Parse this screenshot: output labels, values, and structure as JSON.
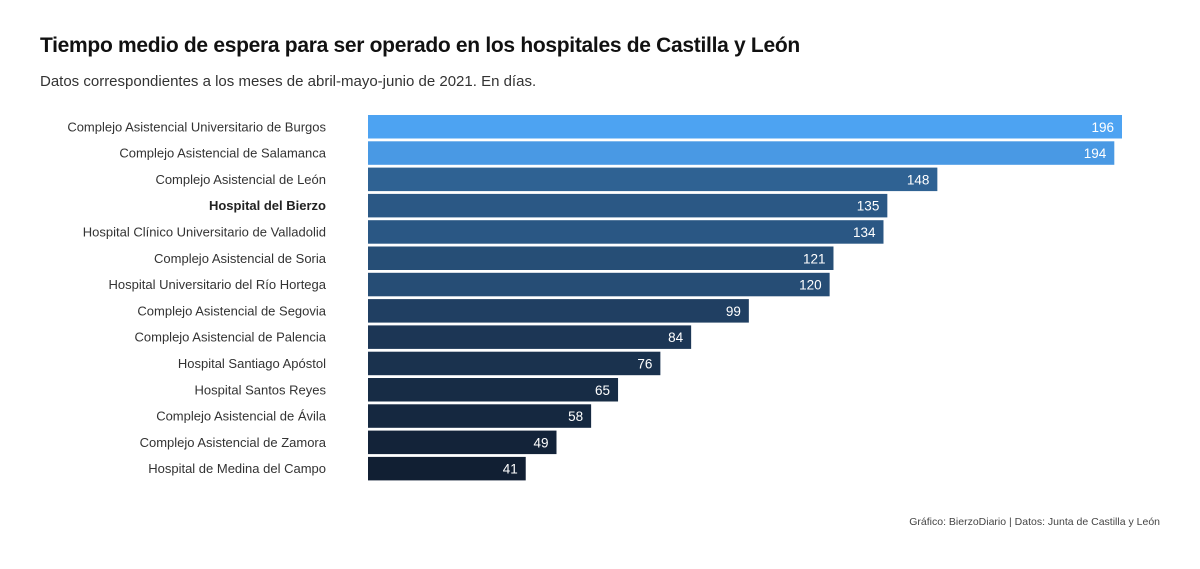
{
  "chart_data": {
    "type": "bar",
    "orientation": "horizontal",
    "title": "Tiempo medio de espera para ser operado en los hospitales de Castilla y León",
    "subtitle": "Datos correspondientes a los meses de abril-mayo-junio de 2021. En días.",
    "categories": [
      "Complejo Asistencial Universitario de Burgos",
      "Complejo Asistencial de Salamanca",
      "Complejo Asistencial de León",
      "Hospital del Bierzo",
      "Hospital Clínico Universitario de Valladolid",
      "Complejo Asistencial de Soria",
      "Hospital Universitario del Río Hortega",
      "Complejo Asistencial de Segovia",
      "Complejo Asistencial de Palencia",
      "Hospital Santiago Apóstol",
      "Hospital Santos Reyes",
      "Complejo Asistencial de Ávila",
      "Complejo Asistencial de Zamora",
      "Hospital de Medina del Campo"
    ],
    "values": [
      196,
      194,
      148,
      135,
      134,
      121,
      120,
      99,
      84,
      76,
      65,
      58,
      49,
      41
    ],
    "highlighted_category": "Hospital del Bierzo",
    "xlim": [
      0,
      196
    ],
    "grid": false,
    "legend": "none",
    "color_scale": [
      "#4da3f2",
      "#111f33"
    ],
    "source": "Gráfico: BierzoDiario | Datos: Junta de Castilla y León"
  }
}
